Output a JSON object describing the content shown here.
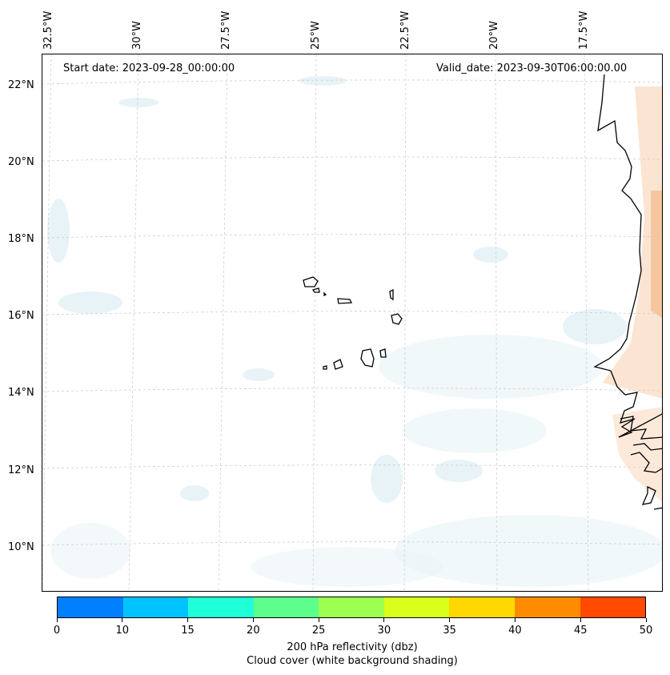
{
  "header": {
    "start_date": "Start date: 2023-09-28_00:00:00",
    "valid_date": "Valid_date: 2023-09-30T06:00:00.00"
  },
  "map": {
    "lon_labels": [
      "32.5°W",
      "30°W",
      "27.5°W",
      "25°W",
      "22.5°W",
      "20°W",
      "17.5°W"
    ],
    "lat_labels": [
      "22°N",
      "20°N",
      "18°N",
      "16°N",
      "14°N",
      "12°N",
      "10°N"
    ],
    "land_features": [
      "West African coastline",
      "Cape Verde islands"
    ],
    "field_colors": {
      "cloud": "#d6eaf2",
      "warm": "#f6c39a"
    }
  },
  "colorbar": {
    "ticks": [
      "0",
      "10",
      "15",
      "20",
      "25",
      "30",
      "35",
      "40",
      "45",
      "50"
    ],
    "colors": [
      "#0080ff",
      "#00c3ff",
      "#1fffd8",
      "#5cff8c",
      "#9dff50",
      "#d9ff1a",
      "#ffd800",
      "#ff8c00",
      "#ff4a00"
    ],
    "label": "200 hPa reflectivity (dbz)",
    "sublabel": "Cloud cover (white background shading)"
  }
}
